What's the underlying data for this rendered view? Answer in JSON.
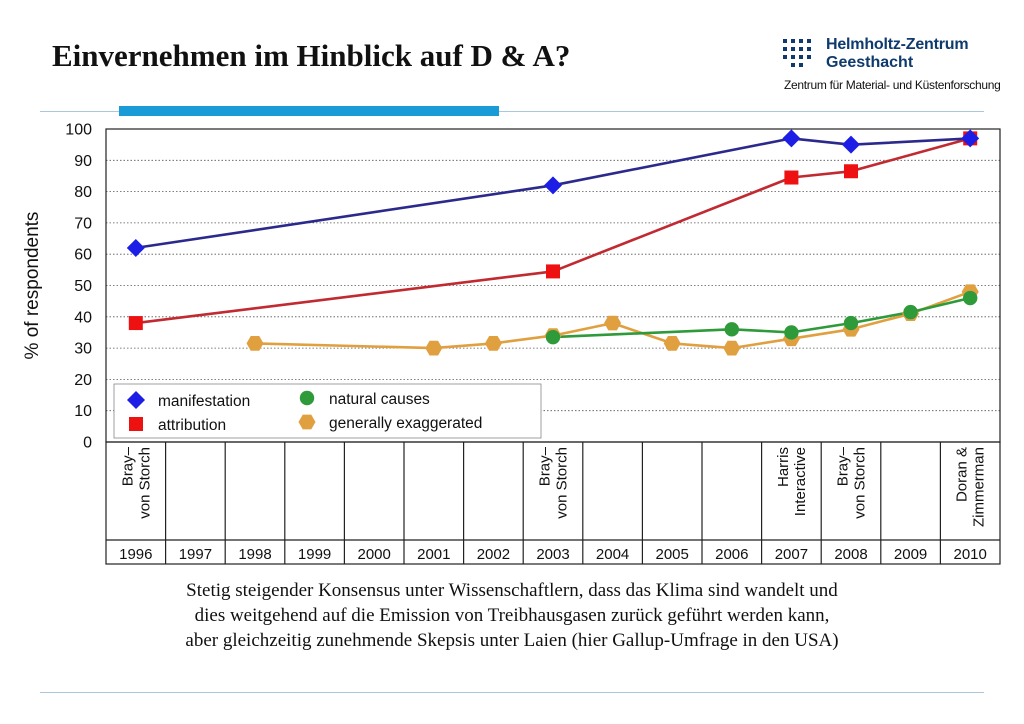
{
  "slide": {
    "title": "Einvernehmen im Hinblick auf D & A?",
    "caption_lines": [
      "Stetig steigender Konsensus unter Wissenschaftlern, dass das Klima sind wandelt und",
      "dies weitgehend auf die Emission von Treibhausgasen zurück geführt werden kann,",
      "aber gleichzeitig zunehmende Skepsis unter Laien  (hier Gallup-Umfrage in den USA)"
    ]
  },
  "logo": {
    "name_line1": "Helmholtz-Zentrum",
    "name_line2": "Geesthacht",
    "subtitle": "Zentrum für Material- und Küstenforschung",
    "color": "#0f3a6e"
  },
  "colors": {
    "accent_bar": "#1a9ad6",
    "rule": "#a9c8dc"
  },
  "chart_data": {
    "type": "line",
    "title": "",
    "ylabel": "% of respondents",
    "xlabel": "",
    "ylim": [
      0,
      100
    ],
    "ytick_step": 10,
    "grid": true,
    "legend_position": "bottom-left",
    "years": [
      "1996",
      "1997",
      "1998",
      "1999",
      "2000",
      "2001",
      "2002",
      "2003",
      "2004",
      "2005",
      "2006",
      "2007",
      "2008",
      "2009",
      "2010"
    ],
    "surveys": [
      {
        "year": "1996",
        "label": "Bray–\nvon Storch"
      },
      {
        "year": "2003",
        "label": "Bray–\nvon Storch"
      },
      {
        "year": "2007",
        "label": "Harris\nInteractive"
      },
      {
        "year": "2008",
        "label": "Bray–\nvon Storch"
      },
      {
        "year": "2010",
        "label": "Doran &\nZimmerman"
      }
    ],
    "series": [
      {
        "name": "manifestation",
        "marker": "diamond",
        "marker_color": "#1c1ee6",
        "line_color": "#2b2a8c",
        "points": [
          [
            1996,
            62
          ],
          [
            2003,
            82
          ],
          [
            2007,
            97
          ],
          [
            2008,
            95
          ],
          [
            2010,
            97
          ]
        ]
      },
      {
        "name": "attribution",
        "marker": "square",
        "marker_color": "#ee1111",
        "line_color": "#c02a30",
        "points": [
          [
            1996,
            38
          ],
          [
            2003,
            54.5
          ],
          [
            2007,
            84.5
          ],
          [
            2008,
            86.5
          ],
          [
            2010,
            97
          ]
        ]
      },
      {
        "name": "natural causes",
        "marker": "circle",
        "marker_color": "#2e9a3a",
        "line_color": "#2e9a3a",
        "points": [
          [
            2003,
            33.5
          ],
          [
            2006,
            36
          ],
          [
            2007,
            35
          ],
          [
            2008,
            38
          ],
          [
            2009,
            41.5
          ],
          [
            2010,
            46
          ]
        ]
      },
      {
        "name": "generally exaggerated",
        "marker": "hexagon",
        "marker_color": "#e0a040",
        "line_color": "#e0a040",
        "points": [
          [
            1998,
            31.5
          ],
          [
            2001,
            30
          ],
          [
            2002,
            31.5
          ],
          [
            2003,
            34
          ],
          [
            2004,
            38
          ],
          [
            2005,
            31.5
          ],
          [
            2006,
            30
          ],
          [
            2007,
            33
          ],
          [
            2008,
            36
          ],
          [
            2009,
            41
          ],
          [
            2010,
            48
          ]
        ]
      }
    ]
  }
}
